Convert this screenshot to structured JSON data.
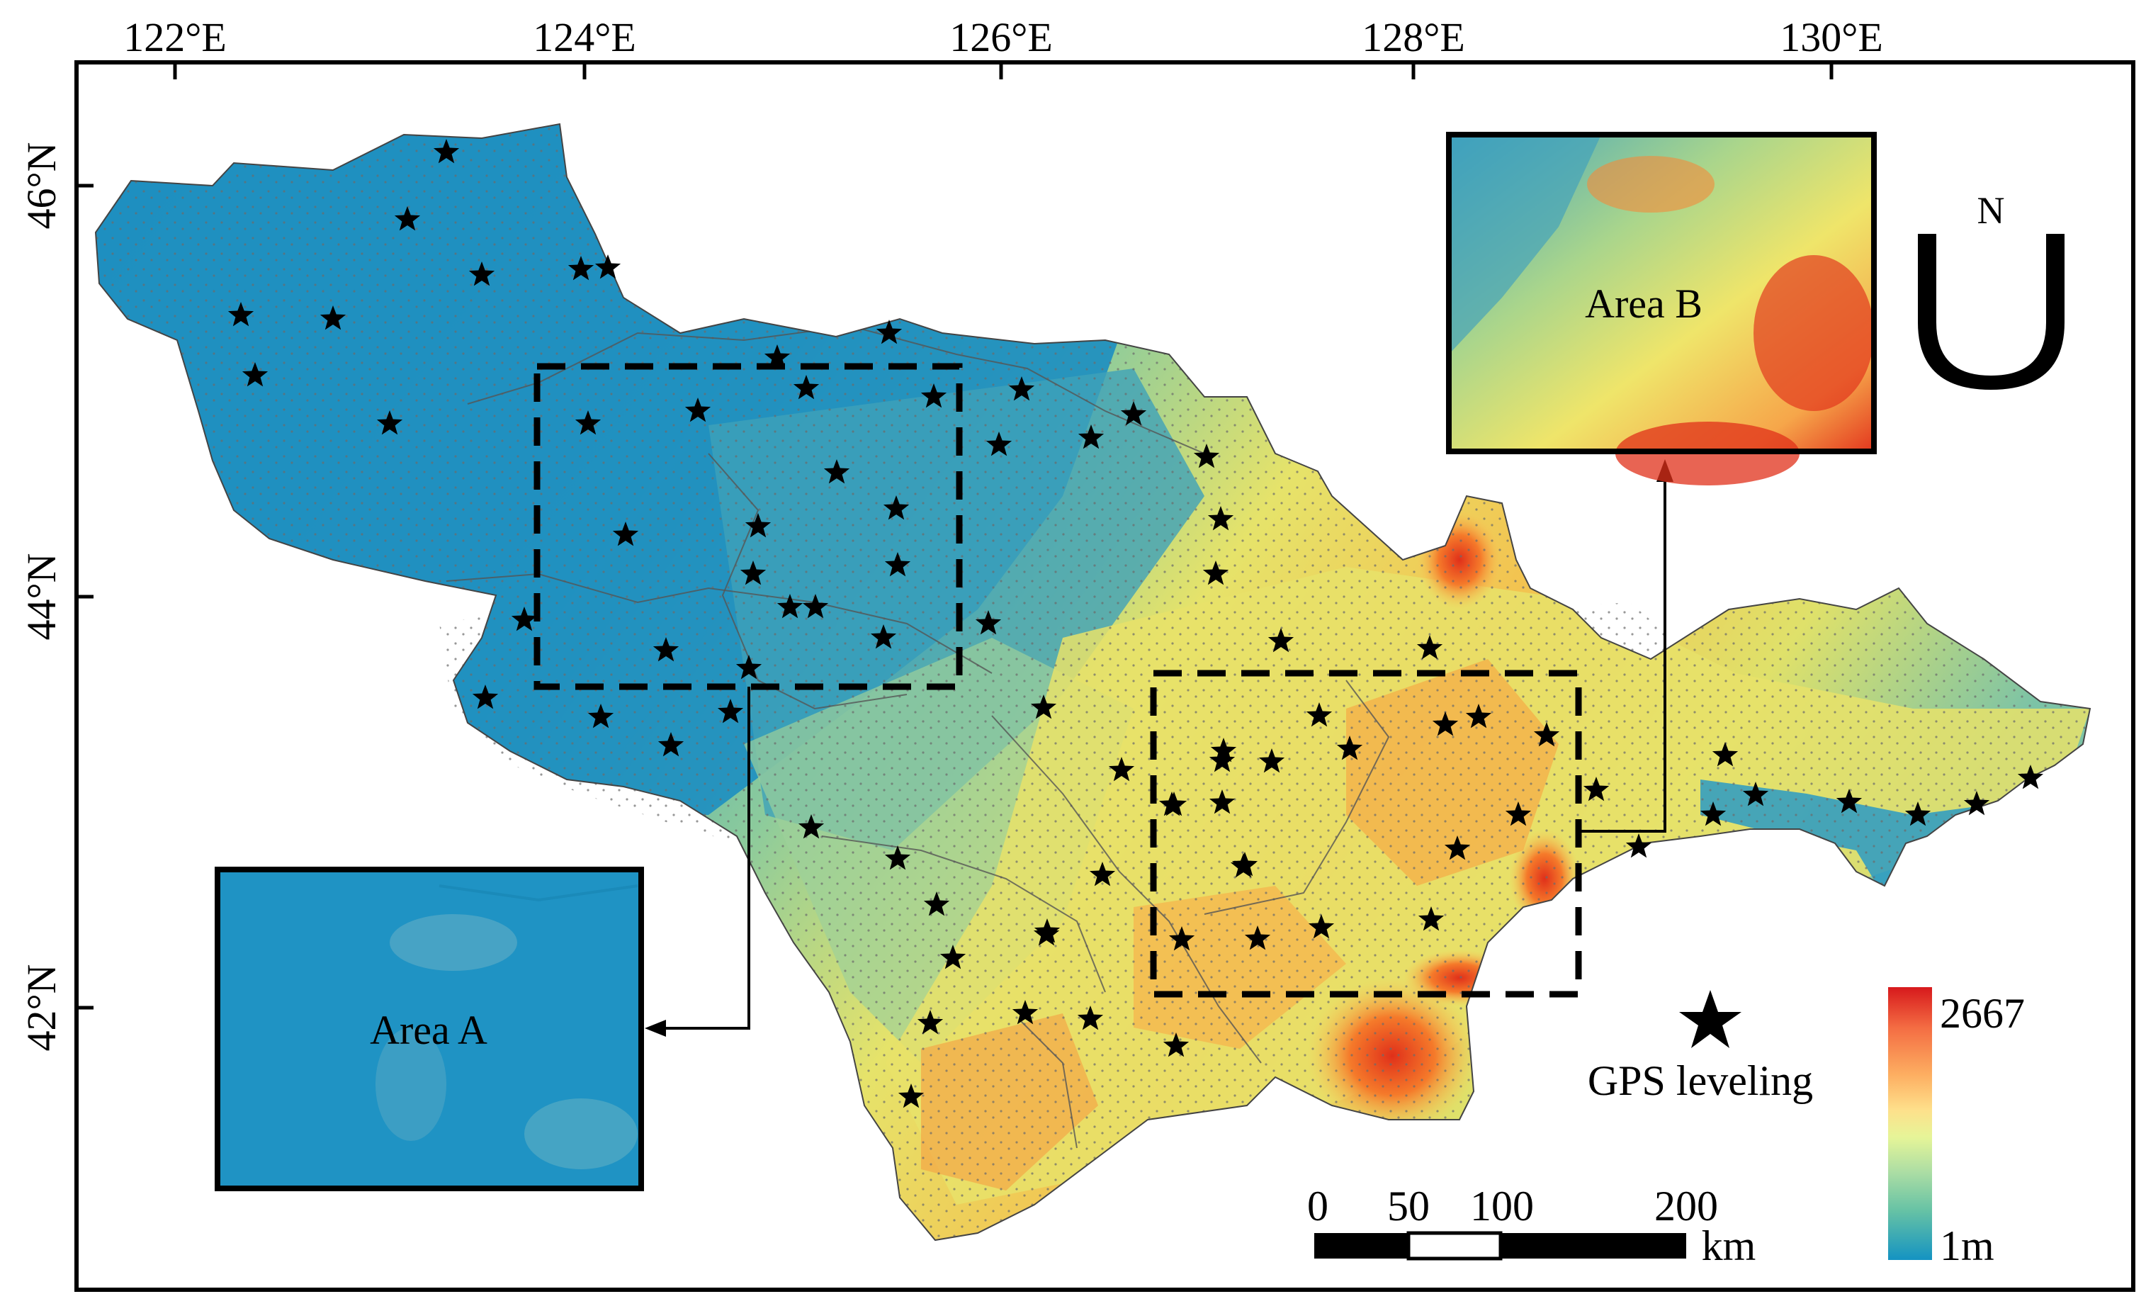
{
  "map": {
    "longitude_labels": [
      "122°E",
      "124°E",
      "126°E",
      "128°E",
      "130°E"
    ],
    "latitude_labels": [
      "46°N",
      "44°N",
      "42°N"
    ],
    "north_arrow": {
      "letter": "N",
      "icon": "north-arrow-icon"
    },
    "legend": {
      "symbol_icon": "star-icon",
      "symbol_label": "GPS leveling",
      "elevation_max": "2667",
      "elevation_min": "1m",
      "colors": [
        "#d7191c",
        "#f46d43",
        "#fdae61",
        "#fee08b",
        "#e6f598",
        "#abdda4",
        "#66c2a5",
        "#2b9fc9",
        "#1493c2"
      ]
    },
    "scale_bar": {
      "ticks": [
        "0",
        "50",
        "100",
        "200"
      ],
      "unit": "km"
    },
    "insets": [
      {
        "id": "area-a",
        "label": "Area A"
      },
      {
        "id": "area-b",
        "label": "Area B"
      }
    ]
  }
}
